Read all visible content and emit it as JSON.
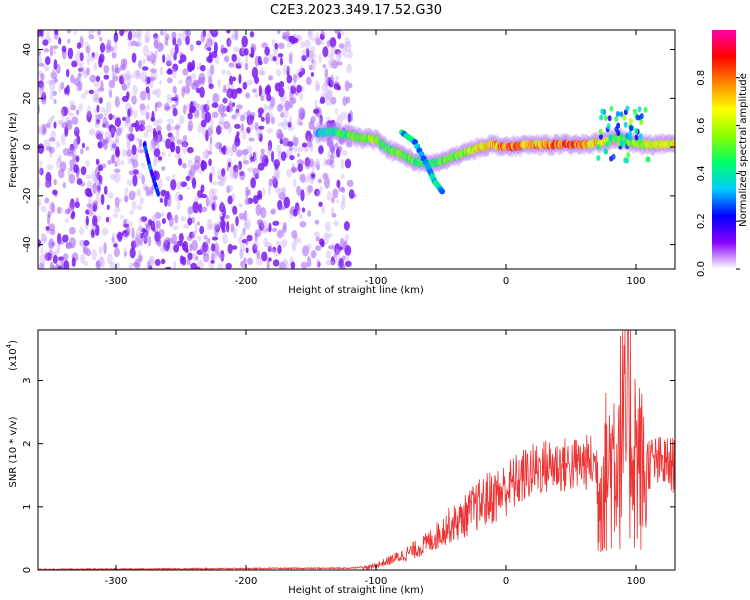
{
  "title": "C2E3.2023.349.17.52.G30",
  "chart_data": [
    {
      "type": "heatmap",
      "xlabel": "Height of straight line (km)",
      "ylabel": "Frequency (Hz)",
      "xlim": [
        -360,
        130
      ],
      "ylim": [
        -50,
        48
      ],
      "xticks": [
        -300,
        -200,
        -100,
        0,
        100
      ],
      "yticks": [
        -40,
        -20,
        0,
        20,
        40
      ],
      "colorbar": {
        "label": "Normalized spectral amplitude",
        "range": [
          0.0,
          1.0
        ],
        "ticks": [
          0.0,
          0.2,
          0.4,
          0.6,
          0.8
        ],
        "colors": [
          "#ffffff",
          "#8800ff",
          "#0000ff",
          "#00ccff",
          "#00ff66",
          "#88ff00",
          "#ffff00",
          "#ff8800",
          "#ff0000",
          "#ff00aa"
        ]
      },
      "noise_region_x": [
        -360,
        -120
      ],
      "trace": [
        {
          "x": -145,
          "f": 6,
          "amp": 0.35
        },
        {
          "x": -130,
          "f": 6,
          "amp": 0.45
        },
        {
          "x": -115,
          "f": 4,
          "amp": 0.55
        },
        {
          "x": -100,
          "f": 3,
          "amp": 0.6
        },
        {
          "x": -90,
          "f": -1,
          "amp": 0.5
        },
        {
          "x": -80,
          "f": -3,
          "amp": 0.55
        },
        {
          "x": -70,
          "f": -6,
          "amp": 0.5
        },
        {
          "x": -60,
          "f": -7,
          "amp": 0.45
        },
        {
          "x": -50,
          "f": -6,
          "amp": 0.5
        },
        {
          "x": -40,
          "f": -4,
          "amp": 0.55
        },
        {
          "x": -30,
          "f": -2,
          "amp": 0.6
        },
        {
          "x": -20,
          "f": 0,
          "amp": 0.7
        },
        {
          "x": -10,
          "f": 1,
          "amp": 0.75
        },
        {
          "x": 0,
          "f": 0,
          "amp": 0.85
        },
        {
          "x": 20,
          "f": 1,
          "amp": 0.75
        },
        {
          "x": 40,
          "f": 1,
          "amp": 0.85
        },
        {
          "x": 60,
          "f": 1,
          "amp": 0.85
        },
        {
          "x": 75,
          "f": 2,
          "amp": 0.65
        },
        {
          "x": 85,
          "f": 4,
          "amp": 0.5
        },
        {
          "x": 95,
          "f": 2,
          "amp": 0.55
        },
        {
          "x": 105,
          "f": 1,
          "amp": 0.6
        },
        {
          "x": 120,
          "f": 1,
          "amp": 0.7
        },
        {
          "x": 130,
          "f": 1,
          "amp": 0.7
        }
      ],
      "side_branch": [
        {
          "x": -80,
          "f": 6
        },
        {
          "x": -70,
          "f": 2
        },
        {
          "x": -60,
          "f": -8
        },
        {
          "x": -55,
          "f": -14
        },
        {
          "x": -48,
          "f": -19
        }
      ],
      "early_streak": [
        {
          "x": -278,
          "f": 1
        },
        {
          "x": -274,
          "f": -8
        },
        {
          "x": -270,
          "f": -15
        },
        {
          "x": -267,
          "f": -20
        }
      ]
    },
    {
      "type": "line",
      "xlabel": "Height of straight line (km)",
      "ylabel": "SNR (10 * v/v)",
      "multiplier_label": "(x10",
      "multiplier_exp": "4",
      "multiplier_close": ")",
      "xlim": [
        -360,
        130
      ],
      "ylim": [
        0,
        3.8
      ],
      "xticks": [
        -300,
        -200,
        -100,
        0,
        100
      ],
      "yticks": [
        0,
        1,
        2,
        3
      ],
      "color": "#ee3333",
      "envelope": [
        {
          "x": -360,
          "y": 0.0
        },
        {
          "x": -120,
          "y": 0.02
        },
        {
          "x": -105,
          "y": 0.05
        },
        {
          "x": -95,
          "y": 0.12
        },
        {
          "x": -80,
          "y": 0.25
        },
        {
          "x": -65,
          "y": 0.4
        },
        {
          "x": -55,
          "y": 0.55
        },
        {
          "x": -45,
          "y": 0.75
        },
        {
          "x": -35,
          "y": 0.85
        },
        {
          "x": -25,
          "y": 1.05
        },
        {
          "x": -15,
          "y": 1.2
        },
        {
          "x": -5,
          "y": 1.3
        },
        {
          "x": 5,
          "y": 1.45
        },
        {
          "x": 15,
          "y": 1.6
        },
        {
          "x": 25,
          "y": 1.7
        },
        {
          "x": 35,
          "y": 1.75
        },
        {
          "x": 50,
          "y": 1.75
        },
        {
          "x": 65,
          "y": 1.8
        },
        {
          "x": 72,
          "y": 1.7
        },
        {
          "x": 80,
          "y": 2.2
        },
        {
          "x": 88,
          "y": 2.7
        },
        {
          "x": 95,
          "y": 3.0
        },
        {
          "x": 102,
          "y": 2.2
        },
        {
          "x": 108,
          "y": 1.8
        },
        {
          "x": 130,
          "y": 1.75
        }
      ],
      "burst_region_x": [
        70,
        108
      ],
      "burst_peak": 3.8
    }
  ]
}
